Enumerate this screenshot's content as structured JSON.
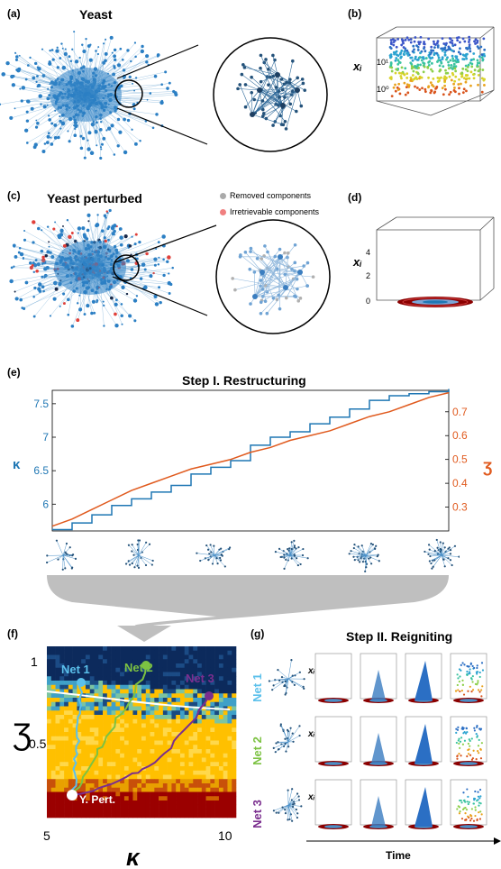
{
  "panels": {
    "a": {
      "label": "(a)",
      "title": "Yeast"
    },
    "b": {
      "label": "(b)",
      "ylabel": "xᵢ",
      "ticks": [
        "10¹",
        "10⁰"
      ]
    },
    "c": {
      "label": "(c)",
      "title": "Yeast perturbed",
      "legend": [
        {
          "text": "Removed components",
          "color": "#aaaaaa"
        },
        {
          "text": "Irretrievable components",
          "color": "#f08080"
        }
      ]
    },
    "d": {
      "label": "(d)",
      "ylabel": "xᵢ",
      "ticks": [
        "4",
        "2",
        "0"
      ]
    },
    "e": {
      "label": "(e)",
      "title": "Step I. Restructuring"
    },
    "f": {
      "label": "(f)",
      "xlabel": "κ",
      "ylabel": "Ʒ",
      "xticks": [
        "5",
        "10"
      ],
      "yticks": [
        "1",
        "0.5"
      ],
      "nets": [
        {
          "name": "Net 1",
          "color": "#5bc0eb"
        },
        {
          "name": "Net 2",
          "color": "#7cc242"
        },
        {
          "name": "Net 3",
          "color": "#7a2e8e"
        }
      ],
      "start_label": "Y. Pert."
    },
    "g": {
      "label": "(g)",
      "title": "Step II. Reigniting",
      "rows": [
        {
          "name": "Net 1",
          "color": "#5bc0eb"
        },
        {
          "name": "Net 2",
          "color": "#7cc242"
        },
        {
          "name": "Net 3",
          "color": "#7a2e8e"
        }
      ],
      "ylabel": "xᵢ",
      "time_label": "Time"
    }
  },
  "chart_data": {
    "type": "line",
    "title": "Step I. Restructuring",
    "xlabel": "",
    "ylabel_left": "κ",
    "ylabel_right": "Ʒ",
    "ylim_left": [
      5.6,
      7.7
    ],
    "ylim_right": [
      0.2,
      0.79
    ],
    "yticks_left": [
      "7.5",
      "7",
      "6.5",
      "6"
    ],
    "yticks_right": [
      "0.7",
      "0.6",
      "0.5",
      "0.4",
      "0.3"
    ],
    "series": [
      {
        "name": "κ",
        "color": "#1f77b4",
        "x": [
          0,
          0.05,
          0.1,
          0.15,
          0.2,
          0.25,
          0.3,
          0.35,
          0.4,
          0.45,
          0.5,
          0.55,
          0.6,
          0.65,
          0.7,
          0.75,
          0.8,
          0.85,
          0.9,
          0.95,
          1.0
        ],
        "values": [
          5.62,
          5.72,
          5.84,
          5.98,
          6.08,
          6.18,
          6.28,
          6.45,
          6.55,
          6.65,
          6.88,
          7.0,
          7.08,
          7.2,
          7.3,
          7.42,
          7.55,
          7.62,
          7.65,
          7.68,
          7.72
        ]
      },
      {
        "name": "Ʒ",
        "color": "#e05a1e",
        "x": [
          0,
          0.05,
          0.1,
          0.15,
          0.2,
          0.25,
          0.3,
          0.35,
          0.4,
          0.45,
          0.5,
          0.55,
          0.6,
          0.65,
          0.7,
          0.75,
          0.8,
          0.85,
          0.9,
          0.95,
          1.0
        ],
        "values": [
          0.22,
          0.25,
          0.29,
          0.33,
          0.37,
          0.4,
          0.43,
          0.46,
          0.48,
          0.5,
          0.53,
          0.55,
          0.58,
          0.6,
          0.62,
          0.65,
          0.68,
          0.7,
          0.73,
          0.76,
          0.78
        ]
      }
    ]
  }
}
